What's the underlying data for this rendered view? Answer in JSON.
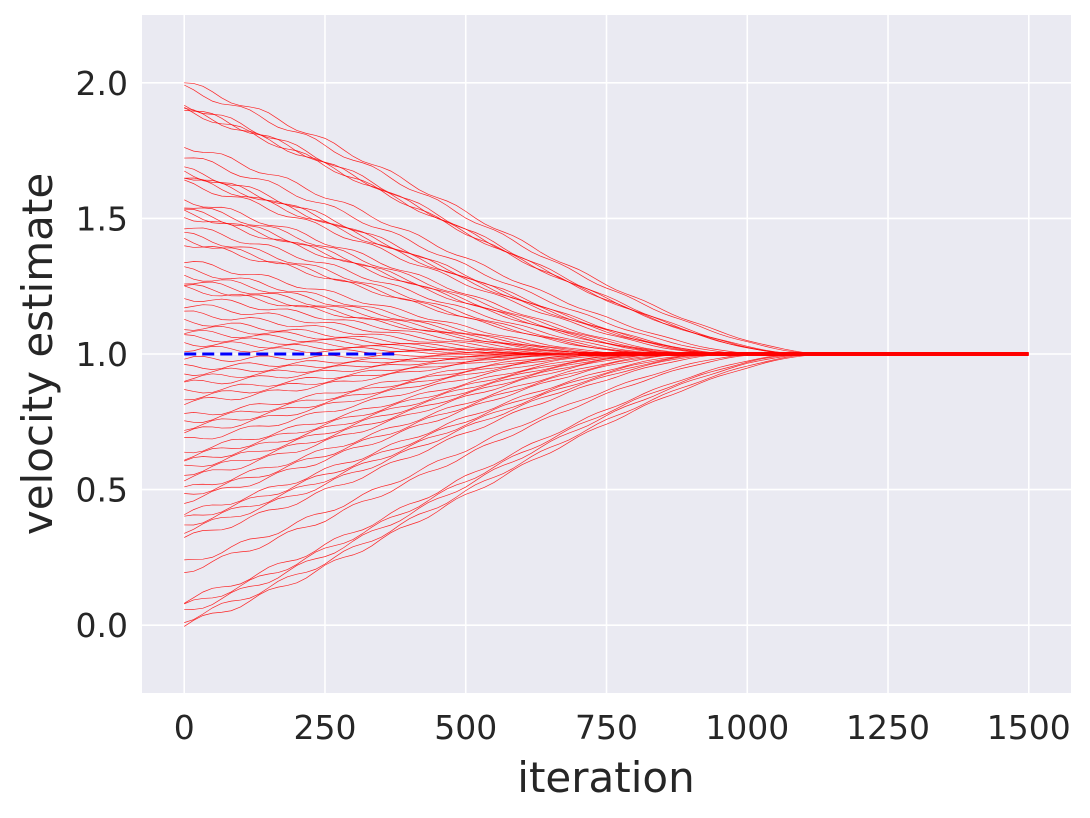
{
  "chart_data": {
    "type": "line",
    "title": "",
    "xlabel": "iteration",
    "ylabel": "velocity estimate",
    "xlim": [
      -75,
      1575
    ],
    "ylim": [
      -0.25,
      2.25
    ],
    "xticks": [
      0,
      250,
      500,
      750,
      1000,
      1250,
      1500
    ],
    "xtick_labels": [
      "0",
      "250",
      "500",
      "750",
      "1000",
      "1250",
      "1500"
    ],
    "yticks": [
      0.0,
      0.5,
      1.0,
      1.5,
      2.0
    ],
    "ytick_labels": [
      "0.0",
      "0.5",
      "1.0",
      "1.5",
      "2.0"
    ],
    "grid": true,
    "background": "#eaeaf2",
    "grid_color": "#ffffff",
    "reference_line": {
      "y": 1.0,
      "x_range": [
        0,
        1500
      ],
      "style": "dashed",
      "color": "#0000ff"
    },
    "trajectories": {
      "color": "#ff0000",
      "x_range": [
        0,
        1500
      ],
      "converged_value": 1.0,
      "initial_values": [
        2.0,
        1.98,
        1.92,
        1.91,
        1.9,
        1.9,
        1.77,
        1.73,
        1.68,
        1.67,
        1.66,
        1.65,
        1.63,
        1.57,
        1.55,
        1.53,
        1.52,
        1.51,
        1.47,
        1.44,
        1.42,
        1.41,
        1.34,
        1.31,
        1.29,
        1.27,
        1.25,
        1.24,
        1.21,
        1.18,
        1.15,
        1.12,
        1.1,
        1.08,
        1.06,
        1.04,
        1.02,
        0.98,
        0.95,
        0.93,
        0.91,
        0.89,
        0.86,
        0.84,
        0.82,
        0.77,
        0.75,
        0.73,
        0.71,
        0.68,
        0.64,
        0.62,
        0.6,
        0.58,
        0.56,
        0.54,
        0.5,
        0.48,
        0.46,
        0.41,
        0.39,
        0.37,
        0.35,
        0.32,
        0.23,
        0.2,
        0.09,
        0.07,
        0.05,
        0.02,
        0.0
      ],
      "converged_by_iteration": 1150
    }
  }
}
